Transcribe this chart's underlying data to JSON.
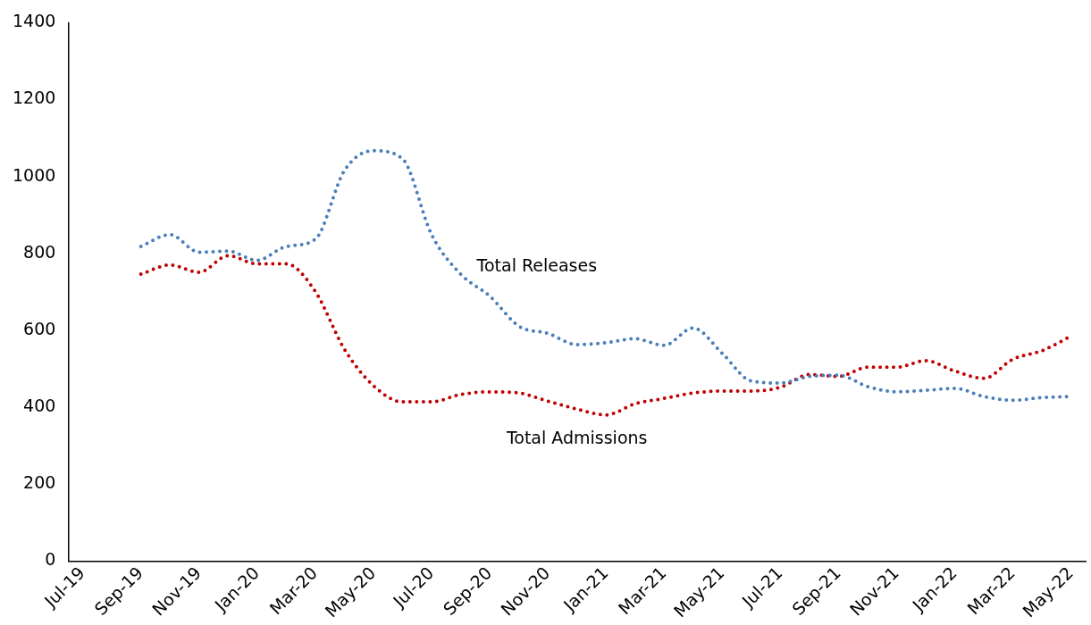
{
  "chart_data": {
    "type": "line",
    "categories": [
      "Jul-19",
      null,
      "Sep-19",
      null,
      "Nov-19",
      null,
      "Jan-20",
      null,
      "Mar-20",
      null,
      "May-20",
      null,
      "Jul-20",
      null,
      "Sep-20",
      null,
      "Nov-20",
      null,
      "Jan-21",
      null,
      "Mar-21",
      null,
      "May-21",
      null,
      "Jul-21",
      null,
      "Sep-21",
      null,
      "Nov-21",
      null,
      "Jan-22",
      null,
      "Mar-22",
      null,
      "May-22"
    ],
    "series": [
      {
        "name": "Total Releases",
        "color": "#4a7ebb",
        "values": [
          null,
          null,
          818,
          849,
          803,
          806,
          782,
          818,
          837,
          1015,
          1067,
          1046,
          849,
          746,
          689,
          611,
          592,
          563,
          568,
          578,
          561,
          606,
          540,
          468,
          463,
          480,
          483,
          454,
          440,
          444,
          449,
          428,
          418,
          425,
          428
        ]
      },
      {
        "name": "Total Admissions",
        "color": "#c00000",
        "values": [
          null,
          null,
          746,
          770,
          751,
          794,
          773,
          773,
          701,
          551,
          456,
          414,
          414,
          433,
          440,
          437,
          416,
          395,
          380,
          409,
          423,
          437,
          442,
          442,
          452,
          485,
          480,
          504,
          504,
          521,
          494,
          475,
          525,
          547,
          585
        ]
      }
    ],
    "ylim": [
      0,
      1400
    ],
    "yticks": [
      0,
      200,
      400,
      600,
      800,
      1000,
      1200,
      1400
    ],
    "grid": false,
    "legend": false,
    "marker": "none",
    "line_style": "dotted"
  }
}
